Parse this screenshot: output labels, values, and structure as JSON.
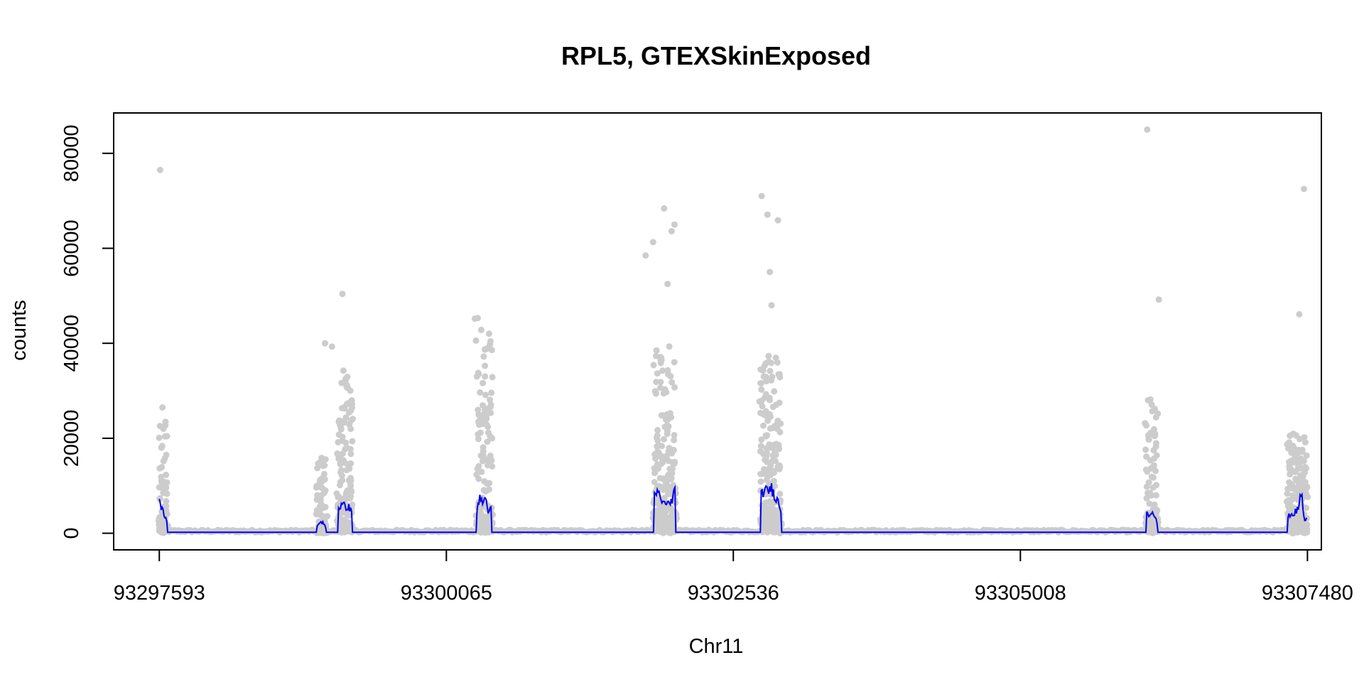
{
  "chart_data": {
    "type": "scatter",
    "title": "RPL5, GTEXSkinExposed",
    "xlabel": "Chr11",
    "ylabel": "counts",
    "xlim": [
      93297200,
      93307600
    ],
    "ylim": [
      -3500,
      88500
    ],
    "x_ticks": [
      93297593,
      93300065,
      93302536,
      93305008,
      93307480
    ],
    "x_tick_labels": [
      "93297593",
      "93300065",
      "93302536",
      "93305008",
      "93307480"
    ],
    "y_ticks": [
      0,
      20000,
      40000,
      60000,
      80000
    ],
    "y_tick_labels": [
      "0",
      "20000",
      "40000",
      "60000",
      "80000"
    ],
    "grid": false,
    "legend": "none",
    "colors": {
      "points": "#cccccc",
      "line": "#0000ee",
      "axis": "#000000"
    },
    "exons": [
      {
        "start": 93297593,
        "end": 93297660,
        "mean": [
          6800,
          5200,
          3800,
          2600
        ],
        "max": 26500
      },
      {
        "start": 93298950,
        "end": 93299030,
        "mean": [
          1200,
          2300,
          2400,
          1100
        ],
        "max": 18000
      },
      {
        "start": 93299130,
        "end": 93299255,
        "mean": [
          5200,
          5900,
          5700,
          5500,
          4200
        ],
        "max": 37000
      },
      {
        "start": 93300325,
        "end": 93300455,
        "mean": [
          5200,
          7200,
          6600,
          7300,
          4500,
          5200
        ],
        "max": 45500
      },
      {
        "start": 93301850,
        "end": 93302040,
        "mean": [
          7200,
          8600,
          7800,
          6000,
          6800,
          5800,
          7600,
          9200
        ],
        "max": 42000
      },
      {
        "start": 93302770,
        "end": 93302945,
        "mean": [
          7500,
          9200,
          8600,
          9700,
          8400,
          6900,
          5100
        ],
        "max": 39000
      },
      {
        "start": 93306090,
        "end": 93306190,
        "mean": [
          4800,
          3800,
          4900,
          3500,
          1800
        ],
        "max": 30000
      },
      {
        "start": 93307310,
        "end": 93307475,
        "mean": [
          3200,
          4100,
          3900,
          4600,
          5200,
          9200,
          2600,
          3100
        ],
        "max": 22000
      }
    ],
    "background_level": 200,
    "outliers": [
      {
        "x": 93297600,
        "y": 76500
      },
      {
        "x": 93297620,
        "y": 26500
      },
      {
        "x": 93299020,
        "y": 40000
      },
      {
        "x": 93299080,
        "y": 39300
      },
      {
        "x": 93299170,
        "y": 50400
      },
      {
        "x": 93300310,
        "y": 45200
      },
      {
        "x": 93300335,
        "y": 45300
      },
      {
        "x": 93301780,
        "y": 58500
      },
      {
        "x": 93301845,
        "y": 61300
      },
      {
        "x": 93301940,
        "y": 68400
      },
      {
        "x": 93301970,
        "y": 52500
      },
      {
        "x": 93302005,
        "y": 63600
      },
      {
        "x": 93302030,
        "y": 65000
      },
      {
        "x": 93302780,
        "y": 71000
      },
      {
        "x": 93302830,
        "y": 67100
      },
      {
        "x": 93302850,
        "y": 55000
      },
      {
        "x": 93302865,
        "y": 48000
      },
      {
        "x": 93302920,
        "y": 65900
      },
      {
        "x": 93306100,
        "y": 85000
      },
      {
        "x": 93306200,
        "y": 49200
      },
      {
        "x": 93307410,
        "y": 46100
      },
      {
        "x": 93307450,
        "y": 72500
      }
    ]
  }
}
